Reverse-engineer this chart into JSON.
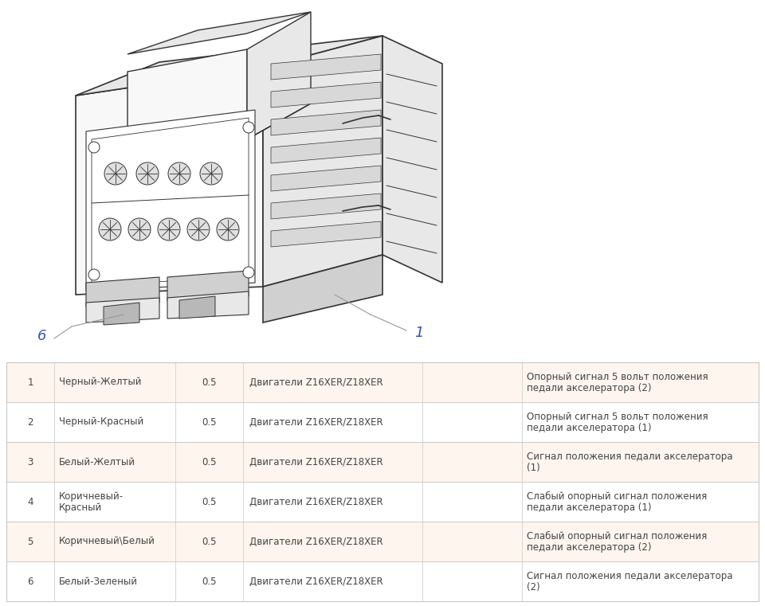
{
  "bg_color": "#ffffff",
  "table_bg_odd": "#fdf5ee",
  "table_bg_even": "#ffffff",
  "table_border_color": "#c8c8c8",
  "text_color": "#444444",
  "blue_color": "#3355bb",
  "line_color": "#666666",
  "rows": [
    {
      "num": "1",
      "color": "Черный-Желтый",
      "color_lines": [
        "Черный-Желтый"
      ],
      "size": "0.5",
      "engine": "Двигатели Z16XER/Z18XER",
      "desc_lines": [
        "Опорный сигнал 5 вольт положения",
        "педали акселератора (2)"
      ]
    },
    {
      "num": "2",
      "color": "Черный-Красный",
      "color_lines": [
        "Черный-Красный"
      ],
      "size": "0.5",
      "engine": "Двигатели Z16XER/Z18XER",
      "desc_lines": [
        "Опорный сигнал 5 вольт положения",
        "педали акселератора (1)"
      ]
    },
    {
      "num": "3",
      "color": "Белый-Желтый",
      "color_lines": [
        "Белый-Желтый"
      ],
      "size": "0.5",
      "engine": "Двигатели Z16XER/Z18XER",
      "desc_lines": [
        "Сигнал положения педали акселератора",
        "(1)"
      ]
    },
    {
      "num": "4",
      "color": "Коричневый-",
      "color_lines": [
        "Коричневый-",
        "Красный"
      ],
      "size": "0.5",
      "engine": "Двигатели Z16XER/Z18XER",
      "desc_lines": [
        "Слабый опорный сигнал положения",
        "педали акселератора (1)"
      ]
    },
    {
      "num": "5",
      "color": "Коричневый\\Белый",
      "color_lines": [
        "Коричневый\\Белый"
      ],
      "size": "0.5",
      "engine": "Двигатели Z16XER/Z18XER",
      "desc_lines": [
        "Слабый опорный сигнал положения",
        "педали акселератора (2)"
      ]
    },
    {
      "num": "6",
      "color": "Белый-Зеленый",
      "color_lines": [
        "Белый-Зеленый"
      ],
      "size": "0.5",
      "engine": "Двигатели Z16XER/Z18XER",
      "desc_lines": [
        "Сигнал положения педали акселератора",
        "(2)"
      ]
    }
  ]
}
